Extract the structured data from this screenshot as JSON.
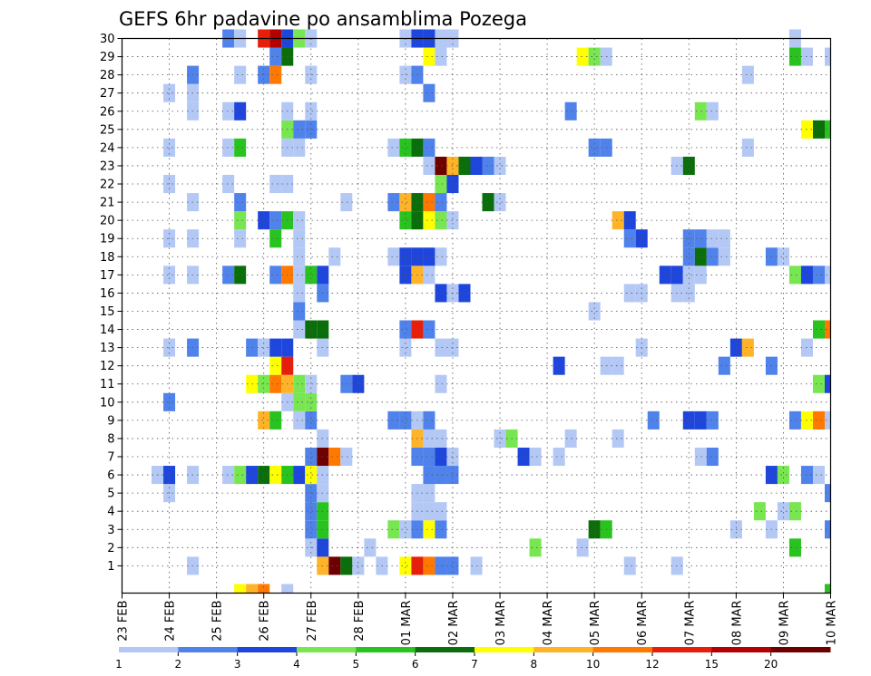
{
  "chart_data": {
    "type": "heatmap",
    "title": "GEFS 6hr padavine po ansamblima Pozega",
    "x_tick_labels": [
      "23 FEB",
      "24 FEB",
      "25 FEB",
      "26 FEB",
      "27 FEB",
      "28 FEB",
      "01 MAR",
      "02 MAR",
      "03 MAR",
      "04 MAR",
      "05 MAR",
      "06 MAR",
      "07 MAR",
      "08 MAR",
      "09 MAR",
      "10 MAR"
    ],
    "y_tick_labels": [
      "1",
      "2",
      "3",
      "4",
      "5",
      "6",
      "7",
      "8",
      "9",
      "10",
      "11",
      "12",
      "13",
      "14",
      "15",
      "16",
      "17",
      "18",
      "19",
      "20",
      "21",
      "22",
      "23",
      "24",
      "25",
      "26",
      "27",
      "28",
      "29",
      "30"
    ],
    "time_steps_per_day": 4,
    "legend_labels": [
      "1",
      "2",
      "3",
      "4",
      "5",
      "6",
      "7",
      "8",
      "10",
      "12",
      "15",
      "20"
    ],
    "legend_colors": [
      "#b4c8f5",
      "#5082eb",
      "#1e46dc",
      "#78e650",
      "#28c31e",
      "#0a6e0a",
      "#ffff00",
      "#ffb428",
      "#ff7800",
      "#e61e0a",
      "#b40000",
      "#6e0000"
    ],
    "grid": true,
    "cells": [
      [
        1,
        17,
        "#ffb428"
      ],
      [
        1,
        18,
        "#6e0000"
      ],
      [
        1,
        19,
        "#0a6e0a"
      ],
      [
        1,
        20,
        "#b4c8f5"
      ],
      [
        1,
        22,
        "#b4c8f5"
      ],
      [
        1,
        24,
        "#ffff00"
      ],
      [
        1,
        25,
        "#e61e0a"
      ],
      [
        1,
        26,
        "#ff7800"
      ],
      [
        1,
        27,
        "#5082eb"
      ],
      [
        1,
        28,
        "#5082eb"
      ],
      [
        1,
        30,
        "#b4c8f5"
      ],
      [
        1,
        6,
        "#b4c8f5"
      ],
      [
        1,
        43,
        "#b4c8f5"
      ],
      [
        1,
        47,
        "#b4c8f5"
      ],
      [
        2,
        16,
        "#b4c8f5"
      ],
      [
        2,
        17,
        "#1e46dc"
      ],
      [
        2,
        21,
        "#b4c8f5"
      ],
      [
        2,
        35,
        "#78e650"
      ],
      [
        2,
        39,
        "#b4c8f5"
      ],
      [
        2,
        57,
        "#28c31e"
      ],
      [
        3,
        16,
        "#5082eb"
      ],
      [
        3,
        17,
        "#28c31e"
      ],
      [
        3,
        23,
        "#78e650"
      ],
      [
        3,
        24,
        "#b4c8f5"
      ],
      [
        3,
        25,
        "#5082eb"
      ],
      [
        3,
        26,
        "#ffff00"
      ],
      [
        3,
        27,
        "#5082eb"
      ],
      [
        3,
        40,
        "#0a6e0a"
      ],
      [
        3,
        41,
        "#28c31e"
      ],
      [
        3,
        52,
        "#b4c8f5"
      ],
      [
        3,
        55,
        "#b4c8f5"
      ],
      [
        3,
        60,
        "#5082eb"
      ],
      [
        4,
        16,
        "#5082eb"
      ],
      [
        4,
        17,
        "#28c31e"
      ],
      [
        4,
        25,
        "#b4c8f5"
      ],
      [
        4,
        26,
        "#b4c8f5"
      ],
      [
        4,
        27,
        "#b4c8f5"
      ],
      [
        4,
        54,
        "#78e650"
      ],
      [
        4,
        56,
        "#b4c8f5"
      ],
      [
        4,
        57,
        "#78e650"
      ],
      [
        5,
        4,
        "#b4c8f5"
      ],
      [
        5,
        16,
        "#5082eb"
      ],
      [
        5,
        17,
        "#b4c8f5"
      ],
      [
        5,
        25,
        "#b4c8f5"
      ],
      [
        5,
        26,
        "#b4c8f5"
      ],
      [
        5,
        60,
        "#5082eb"
      ],
      [
        6,
        3,
        "#b4c8f5"
      ],
      [
        6,
        4,
        "#1e46dc"
      ],
      [
        6,
        6,
        "#b4c8f5"
      ],
      [
        6,
        9,
        "#b4c8f5"
      ],
      [
        6,
        10,
        "#78e650"
      ],
      [
        6,
        11,
        "#1e46dc"
      ],
      [
        6,
        12,
        "#0a6e0a"
      ],
      [
        6,
        13,
        "#ffff00"
      ],
      [
        6,
        14,
        "#28c31e"
      ],
      [
        6,
        15,
        "#1e46dc"
      ],
      [
        6,
        16,
        "#ffff00"
      ],
      [
        6,
        17,
        "#b4c8f5"
      ],
      [
        6,
        26,
        "#5082eb"
      ],
      [
        6,
        27,
        "#5082eb"
      ],
      [
        6,
        28,
        "#5082eb"
      ],
      [
        6,
        55,
        "#1e46dc"
      ],
      [
        6,
        56,
        "#78e650"
      ],
      [
        6,
        58,
        "#5082eb"
      ],
      [
        6,
        59,
        "#b4c8f5"
      ],
      [
        7,
        16,
        "#5082eb"
      ],
      [
        7,
        17,
        "#6e0000"
      ],
      [
        7,
        18,
        "#ff7800"
      ],
      [
        7,
        19,
        "#b4c8f5"
      ],
      [
        7,
        25,
        "#5082eb"
      ],
      [
        7,
        26,
        "#5082eb"
      ],
      [
        7,
        27,
        "#1e46dc"
      ],
      [
        7,
        28,
        "#b4c8f5"
      ],
      [
        7,
        34,
        "#1e46dc"
      ],
      [
        7,
        35,
        "#b4c8f5"
      ],
      [
        7,
        37,
        "#b4c8f5"
      ],
      [
        7,
        49,
        "#b4c8f5"
      ],
      [
        7,
        50,
        "#5082eb"
      ],
      [
        8,
        17,
        "#b4c8f5"
      ],
      [
        8,
        25,
        "#ffb428"
      ],
      [
        8,
        26,
        "#b4c8f5"
      ],
      [
        8,
        27,
        "#b4c8f5"
      ],
      [
        8,
        32,
        "#b4c8f5"
      ],
      [
        8,
        33,
        "#78e650"
      ],
      [
        8,
        38,
        "#b4c8f5"
      ],
      [
        8,
        42,
        "#b4c8f5"
      ],
      [
        9,
        12,
        "#ffb428"
      ],
      [
        9,
        13,
        "#28c31e"
      ],
      [
        9,
        15,
        "#b4c8f5"
      ],
      [
        9,
        16,
        "#5082eb"
      ],
      [
        9,
        23,
        "#5082eb"
      ],
      [
        9,
        24,
        "#5082eb"
      ],
      [
        9,
        25,
        "#b4c8f5"
      ],
      [
        9,
        26,
        "#5082eb"
      ],
      [
        9,
        45,
        "#5082eb"
      ],
      [
        9,
        48,
        "#1e46dc"
      ],
      [
        9,
        49,
        "#1e46dc"
      ],
      [
        9,
        50,
        "#5082eb"
      ],
      [
        9,
        57,
        "#5082eb"
      ],
      [
        9,
        58,
        "#ffff00"
      ],
      [
        9,
        59,
        "#ff7800"
      ],
      [
        9,
        60,
        "#b4c8f5"
      ],
      [
        10,
        4,
        "#5082eb"
      ],
      [
        10,
        14,
        "#b4c8f5"
      ],
      [
        10,
        15,
        "#78e650"
      ],
      [
        10,
        16,
        "#78e650"
      ],
      [
        11,
        11,
        "#ffff00"
      ],
      [
        11,
        12,
        "#78e650"
      ],
      [
        11,
        13,
        "#ff7800"
      ],
      [
        11,
        14,
        "#ffb428"
      ],
      [
        11,
        15,
        "#78e650"
      ],
      [
        11,
        16,
        "#b4c8f5"
      ],
      [
        11,
        19,
        "#5082eb"
      ],
      [
        11,
        20,
        "#1e46dc"
      ],
      [
        11,
        27,
        "#b4c8f5"
      ],
      [
        11,
        59,
        "#78e650"
      ],
      [
        11,
        60,
        "#1e46dc"
      ],
      [
        12,
        13,
        "#ffff00"
      ],
      [
        12,
        14,
        "#e61e0a"
      ],
      [
        12,
        37,
        "#1e46dc"
      ],
      [
        12,
        41,
        "#b4c8f5"
      ],
      [
        12,
        42,
        "#b4c8f5"
      ],
      [
        12,
        51,
        "#5082eb"
      ],
      [
        12,
        55,
        "#5082eb"
      ],
      [
        13,
        4,
        "#b4c8f5"
      ],
      [
        13,
        6,
        "#5082eb"
      ],
      [
        13,
        11,
        "#5082eb"
      ],
      [
        13,
        12,
        "#b4c8f5"
      ],
      [
        13,
        13,
        "#1e46dc"
      ],
      [
        13,
        14,
        "#1e46dc"
      ],
      [
        13,
        17,
        "#b4c8f5"
      ],
      [
        13,
        24,
        "#b4c8f5"
      ],
      [
        13,
        27,
        "#b4c8f5"
      ],
      [
        13,
        28,
        "#b4c8f5"
      ],
      [
        13,
        44,
        "#b4c8f5"
      ],
      [
        13,
        52,
        "#1e46dc"
      ],
      [
        13,
        53,
        "#ffb428"
      ],
      [
        13,
        58,
        "#b4c8f5"
      ],
      [
        14,
        15,
        "#b4c8f5"
      ],
      [
        14,
        16,
        "#0a6e0a"
      ],
      [
        14,
        17,
        "#0a6e0a"
      ],
      [
        14,
        24,
        "#5082eb"
      ],
      [
        14,
        25,
        "#e61e0a"
      ],
      [
        14,
        26,
        "#5082eb"
      ],
      [
        14,
        59,
        "#28c31e"
      ],
      [
        14,
        60,
        "#ff7800"
      ],
      [
        15,
        15,
        "#5082eb"
      ],
      [
        15,
        40,
        "#b4c8f5"
      ],
      [
        16,
        15,
        "#b4c8f5"
      ],
      [
        16,
        17,
        "#5082eb"
      ],
      [
        16,
        27,
        "#1e46dc"
      ],
      [
        16,
        28,
        "#b4c8f5"
      ],
      [
        16,
        29,
        "#1e46dc"
      ],
      [
        16,
        43,
        "#b4c8f5"
      ],
      [
        16,
        44,
        "#b4c8f5"
      ],
      [
        16,
        47,
        "#b4c8f5"
      ],
      [
        16,
        48,
        "#b4c8f5"
      ],
      [
        17,
        4,
        "#b4c8f5"
      ],
      [
        17,
        6,
        "#b4c8f5"
      ],
      [
        17,
        9,
        "#5082eb"
      ],
      [
        17,
        10,
        "#0a6e0a"
      ],
      [
        17,
        13,
        "#5082eb"
      ],
      [
        17,
        14,
        "#ff7800"
      ],
      [
        17,
        15,
        "#b4c8f5"
      ],
      [
        17,
        16,
        "#28c31e"
      ],
      [
        17,
        17,
        "#1e46dc"
      ],
      [
        17,
        24,
        "#1e46dc"
      ],
      [
        17,
        25,
        "#ffb428"
      ],
      [
        17,
        26,
        "#b4c8f5"
      ],
      [
        17,
        46,
        "#1e46dc"
      ],
      [
        17,
        47,
        "#1e46dc"
      ],
      [
        17,
        48,
        "#b4c8f5"
      ],
      [
        17,
        49,
        "#b4c8f5"
      ],
      [
        17,
        57,
        "#78e650"
      ],
      [
        17,
        58,
        "#1e46dc"
      ],
      [
        17,
        59,
        "#5082eb"
      ],
      [
        17,
        60,
        "#b4c8f5"
      ],
      [
        18,
        15,
        "#b4c8f5"
      ],
      [
        18,
        18,
        "#b4c8f5"
      ],
      [
        18,
        23,
        "#b4c8f5"
      ],
      [
        18,
        24,
        "#1e46dc"
      ],
      [
        18,
        25,
        "#1e46dc"
      ],
      [
        18,
        26,
        "#1e46dc"
      ],
      [
        18,
        27,
        "#b4c8f5"
      ],
      [
        18,
        48,
        "#5082eb"
      ],
      [
        18,
        49,
        "#0a6e0a"
      ],
      [
        18,
        50,
        "#5082eb"
      ],
      [
        18,
        51,
        "#b4c8f5"
      ],
      [
        18,
        55,
        "#5082eb"
      ],
      [
        18,
        56,
        "#b4c8f5"
      ],
      [
        19,
        4,
        "#b4c8f5"
      ],
      [
        19,
        6,
        "#b4c8f5"
      ],
      [
        19,
        10,
        "#b4c8f5"
      ],
      [
        19,
        13,
        "#28c31e"
      ],
      [
        19,
        15,
        "#b4c8f5"
      ],
      [
        19,
        43,
        "#5082eb"
      ],
      [
        19,
        44,
        "#1e46dc"
      ],
      [
        19,
        48,
        "#5082eb"
      ],
      [
        19,
        49,
        "#5082eb"
      ],
      [
        19,
        50,
        "#b4c8f5"
      ],
      [
        19,
        51,
        "#b4c8f5"
      ],
      [
        20,
        10,
        "#78e650"
      ],
      [
        20,
        12,
        "#1e46dc"
      ],
      [
        20,
        13,
        "#5082eb"
      ],
      [
        20,
        14,
        "#28c31e"
      ],
      [
        20,
        15,
        "#b4c8f5"
      ],
      [
        20,
        24,
        "#28c31e"
      ],
      [
        20,
        25,
        "#0a6e0a"
      ],
      [
        20,
        26,
        "#ffff00"
      ],
      [
        20,
        27,
        "#78e650"
      ],
      [
        20,
        28,
        "#b4c8f5"
      ],
      [
        20,
        42,
        "#ffb428"
      ],
      [
        20,
        43,
        "#1e46dc"
      ],
      [
        21,
        6,
        "#b4c8f5"
      ],
      [
        21,
        10,
        "#5082eb"
      ],
      [
        21,
        19,
        "#b4c8f5"
      ],
      [
        21,
        23,
        "#5082eb"
      ],
      [
        21,
        24,
        "#ffb428"
      ],
      [
        21,
        25,
        "#0a6e0a"
      ],
      [
        21,
        26,
        "#ff7800"
      ],
      [
        21,
        27,
        "#5082eb"
      ],
      [
        21,
        31,
        "#0a6e0a"
      ],
      [
        21,
        32,
        "#b4c8f5"
      ],
      [
        22,
        4,
        "#b4c8f5"
      ],
      [
        22,
        9,
        "#b4c8f5"
      ],
      [
        22,
        13,
        "#b4c8f5"
      ],
      [
        22,
        14,
        "#b4c8f5"
      ],
      [
        22,
        27,
        "#78e650"
      ],
      [
        22,
        28,
        "#1e46dc"
      ],
      [
        23,
        26,
        "#b4c8f5"
      ],
      [
        23,
        27,
        "#6e0000"
      ],
      [
        23,
        28,
        "#ffb428"
      ],
      [
        23,
        29,
        "#0a6e0a"
      ],
      [
        23,
        30,
        "#1e46dc"
      ],
      [
        23,
        31,
        "#5082eb"
      ],
      [
        23,
        32,
        "#b4c8f5"
      ],
      [
        23,
        47,
        "#b4c8f5"
      ],
      [
        23,
        48,
        "#0a6e0a"
      ],
      [
        24,
        4,
        "#b4c8f5"
      ],
      [
        24,
        9,
        "#b4c8f5"
      ],
      [
        24,
        10,
        "#28c31e"
      ],
      [
        24,
        14,
        "#b4c8f5"
      ],
      [
        24,
        15,
        "#b4c8f5"
      ],
      [
        24,
        23,
        "#b4c8f5"
      ],
      [
        24,
        24,
        "#28c31e"
      ],
      [
        24,
        25,
        "#0a6e0a"
      ],
      [
        24,
        26,
        "#5082eb"
      ],
      [
        24,
        40,
        "#5082eb"
      ],
      [
        24,
        41,
        "#5082eb"
      ],
      [
        24,
        53,
        "#b4c8f5"
      ],
      [
        25,
        14,
        "#78e650"
      ],
      [
        25,
        15,
        "#5082eb"
      ],
      [
        25,
        16,
        "#5082eb"
      ],
      [
        25,
        58,
        "#ffff00"
      ],
      [
        25,
        59,
        "#0a6e0a"
      ],
      [
        25,
        60,
        "#28c31e"
      ],
      [
        26,
        6,
        "#b4c8f5"
      ],
      [
        26,
        9,
        "#b4c8f5"
      ],
      [
        26,
        10,
        "#1e46dc"
      ],
      [
        26,
        14,
        "#b4c8f5"
      ],
      [
        26,
        16,
        "#b4c8f5"
      ],
      [
        26,
        38,
        "#5082eb"
      ],
      [
        26,
        49,
        "#78e650"
      ],
      [
        26,
        50,
        "#b4c8f5"
      ],
      [
        27,
        4,
        "#b4c8f5"
      ],
      [
        27,
        6,
        "#b4c8f5"
      ],
      [
        27,
        26,
        "#5082eb"
      ],
      [
        28,
        6,
        "#5082eb"
      ],
      [
        28,
        10,
        "#b4c8f5"
      ],
      [
        28,
        12,
        "#5082eb"
      ],
      [
        28,
        13,
        "#ff7800"
      ],
      [
        28,
        16,
        "#b4c8f5"
      ],
      [
        28,
        24,
        "#b4c8f5"
      ],
      [
        28,
        25,
        "#5082eb"
      ],
      [
        28,
        53,
        "#b4c8f5"
      ],
      [
        29,
        13,
        "#5082eb"
      ],
      [
        29,
        14,
        "#0a6e0a"
      ],
      [
        29,
        26,
        "#ffff00"
      ],
      [
        29,
        27,
        "#b4c8f5"
      ],
      [
        29,
        39,
        "#ffff00"
      ],
      [
        29,
        40,
        "#78e650"
      ],
      [
        29,
        41,
        "#b4c8f5"
      ],
      [
        29,
        57,
        "#28c31e"
      ],
      [
        29,
        58,
        "#b4c8f5"
      ],
      [
        29,
        60,
        "#b4c8f5"
      ],
      [
        30,
        9,
        "#5082eb"
      ],
      [
        30,
        10,
        "#b4c8f5"
      ],
      [
        30,
        12,
        "#e61e0a"
      ],
      [
        30,
        13,
        "#b40000"
      ],
      [
        30,
        14,
        "#1e46dc"
      ],
      [
        30,
        15,
        "#78e650"
      ],
      [
        30,
        16,
        "#b4c8f5"
      ],
      [
        30,
        24,
        "#b4c8f5"
      ],
      [
        30,
        25,
        "#1e46dc"
      ],
      [
        30,
        26,
        "#1e46dc"
      ],
      [
        30,
        27,
        "#b4c8f5"
      ],
      [
        30,
        28,
        "#b4c8f5"
      ],
      [
        30,
        57,
        "#b4c8f5"
      ],
      [
        0,
        10,
        "#ffff00"
      ],
      [
        0,
        11,
        "#ffb428"
      ],
      [
        0,
        12,
        "#ff7800"
      ],
      [
        0,
        14,
        "#b4c8f5"
      ],
      [
        0,
        60,
        "#28c31e"
      ]
    ]
  }
}
